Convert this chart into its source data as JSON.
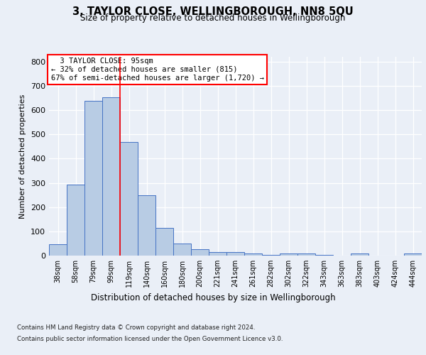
{
  "title": "3, TAYLOR CLOSE, WELLINGBOROUGH, NN8 5QU",
  "subtitle": "Size of property relative to detached houses in Wellingborough",
  "xlabel": "Distribution of detached houses by size in Wellingborough",
  "ylabel": "Number of detached properties",
  "footer_line1": "Contains HM Land Registry data © Crown copyright and database right 2024.",
  "footer_line2": "Contains public sector information licensed under the Open Government Licence v3.0.",
  "categories": [
    "38sqm",
    "58sqm",
    "79sqm",
    "99sqm",
    "119sqm",
    "140sqm",
    "160sqm",
    "180sqm",
    "200sqm",
    "221sqm",
    "241sqm",
    "261sqm",
    "282sqm",
    "302sqm",
    "322sqm",
    "343sqm",
    "363sqm",
    "383sqm",
    "403sqm",
    "424sqm",
    "444sqm"
  ],
  "values": [
    46,
    292,
    638,
    652,
    470,
    250,
    113,
    50,
    27,
    15,
    15,
    8,
    4,
    8,
    8,
    4,
    0,
    8,
    0,
    0,
    8
  ],
  "bar_color": "#b8cce4",
  "bar_edge_color": "#4472c4",
  "pct_smaller": 32,
  "n_smaller": 815,
  "pct_larger_semi": 67,
  "n_larger_semi": 1720,
  "vline_x": 3.5,
  "ylim": [
    0,
    820
  ],
  "yticks": [
    0,
    100,
    200,
    300,
    400,
    500,
    600,
    700,
    800
  ],
  "bg_color": "#eaeff7",
  "plot_bg_color": "#eaeff7"
}
